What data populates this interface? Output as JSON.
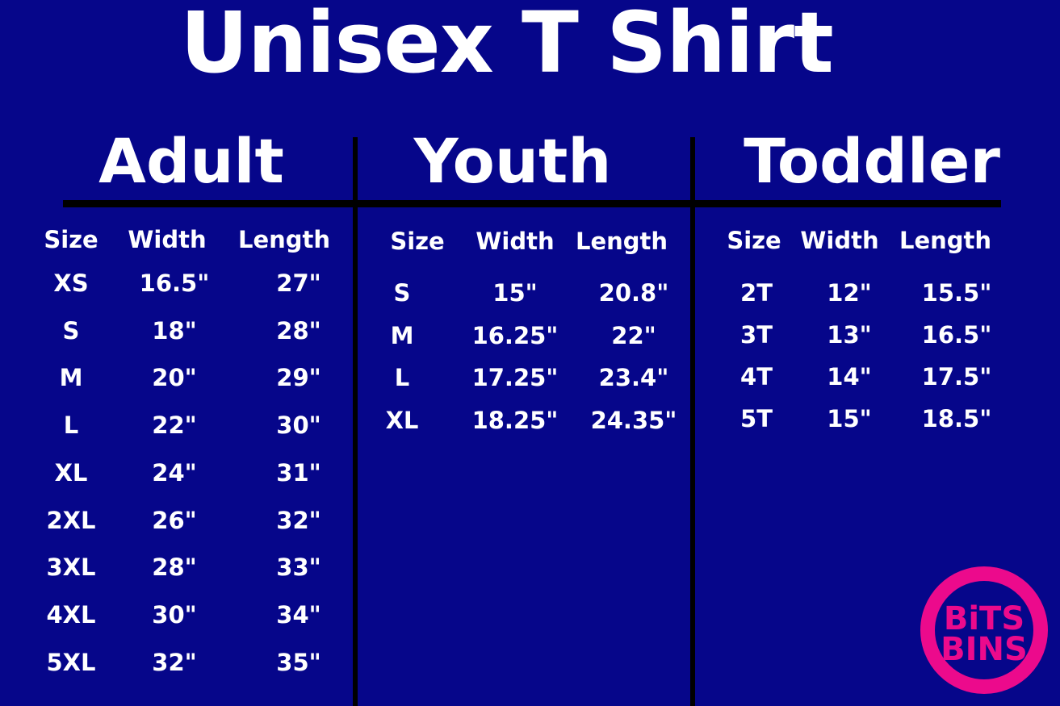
{
  "title": "Unisex T Shirt",
  "colors": {
    "background": "#06068a",
    "text": "#ffffff",
    "rules": "#000000",
    "logo": "#ec0a8c"
  },
  "sections": [
    {
      "name": "Adult",
      "headers": [
        "Size",
        "Width",
        "Length"
      ],
      "rows": [
        [
          "XS",
          "16.5\"",
          "27\""
        ],
        [
          "S",
          "18\"",
          "28\""
        ],
        [
          "M",
          "20\"",
          "29\""
        ],
        [
          "L",
          "22\"",
          "30\""
        ],
        [
          "XL",
          "24\"",
          "31\""
        ],
        [
          "2XL",
          "26\"",
          "32\""
        ],
        [
          "3XL",
          "28\"",
          "33\""
        ],
        [
          "4XL",
          "30\"",
          "34\""
        ],
        [
          "5XL",
          "32\"",
          "35\""
        ]
      ]
    },
    {
      "name": "Youth",
      "headers": [
        "Size",
        "Width",
        "Length"
      ],
      "rows": [
        [
          "S",
          "15\"",
          "20.8\""
        ],
        [
          "M",
          "16.25\"",
          "22\""
        ],
        [
          "L",
          "17.25\"",
          "23.4\""
        ],
        [
          "XL",
          "18.25\"",
          "24.35\""
        ]
      ]
    },
    {
      "name": "Toddler",
      "headers": [
        "Size",
        "Width",
        "Length"
      ],
      "rows": [
        [
          "2T",
          "12\"",
          "15.5\""
        ],
        [
          "3T",
          "13\"",
          "16.5\""
        ],
        [
          "4T",
          "14\"",
          "17.5\""
        ],
        [
          "5T",
          "15\"",
          "18.5\""
        ]
      ]
    }
  ],
  "logo": {
    "line1": "BiTS",
    "line2": "BINS"
  }
}
